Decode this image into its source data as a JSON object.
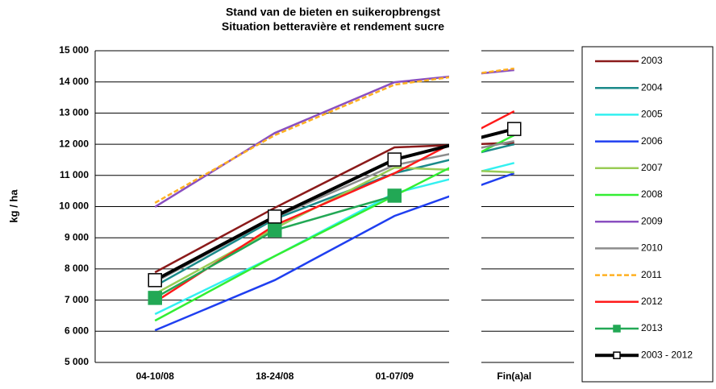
{
  "chart_data": {
    "type": "line",
    "title": "Stand van de bieten en suikeropbrengst",
    "subtitle": "Situation betteravière et rendement sucre",
    "y_label": "kg / ha",
    "categories": [
      "04-10/08",
      "18-24/08",
      "01-07/09",
      "Fin(a)al"
    ],
    "ylim": [
      5000,
      15000
    ],
    "yticks": [
      {
        "value": 5000,
        "label": "5 000"
      },
      {
        "value": 6000,
        "label": "6 000"
      },
      {
        "value": 7000,
        "label": "7 000"
      },
      {
        "value": 8000,
        "label": "8 000"
      },
      {
        "value": 9000,
        "label": "9 000"
      },
      {
        "value": 10000,
        "label": "10 000"
      },
      {
        "value": 11000,
        "label": "11 000"
      },
      {
        "value": 12000,
        "label": "12 000"
      },
      {
        "value": 13000,
        "label": "13 000"
      },
      {
        "value": 14000,
        "label": "14 000"
      },
      {
        "value": 15000,
        "label": "15 000"
      }
    ],
    "grid": true,
    "legend": "right",
    "series": [
      {
        "name": "2003",
        "color": "#8b1a1a",
        "values": [
          7890,
          9960,
          11900,
          12050
        ]
      },
      {
        "name": "2004",
        "color": "#1a8a8a",
        "values": [
          7450,
          9600,
          11070,
          12000
        ]
      },
      {
        "name": "2005",
        "color": "#33f0f0",
        "values": [
          6550,
          8410,
          10430,
          11400
        ]
      },
      {
        "name": "2006",
        "color": "#1f3ff0",
        "values": [
          6030,
          7640,
          9700,
          11070
        ]
      },
      {
        "name": "2007",
        "color": "#99cc55",
        "values": [
          7200,
          9300,
          11250,
          11100
        ]
      },
      {
        "name": "2008",
        "color": "#33ee33",
        "values": [
          6340,
          8410,
          10350,
          12290
        ]
      },
      {
        "name": "2009",
        "color": "#8a4fc0",
        "values": [
          9990,
          12360,
          13990,
          14380
        ]
      },
      {
        "name": "2010",
        "color": "#8c8c8c",
        "values": [
          7580,
          9650,
          11330,
          12100
        ]
      },
      {
        "name": "2011",
        "color": "#ffb020",
        "values": [
          10120,
          12290,
          13910,
          14430
        ],
        "dashed": true
      },
      {
        "name": "2012",
        "color": "#ff1a1a",
        "values": [
          6940,
          9400,
          11070,
          13060
        ]
      },
      {
        "name": "2013",
        "color": "#22a855",
        "values": [
          7070,
          9240,
          10350,
          null
        ],
        "marker": "square",
        "marker_fill": "#22a855"
      },
      {
        "name": "2003 - 2012",
        "color": "#000000",
        "values": [
          7640,
          9680,
          11510,
          12490
        ],
        "marker": "square",
        "marker_fill": "#ffffff",
        "width": 4
      }
    ]
  }
}
